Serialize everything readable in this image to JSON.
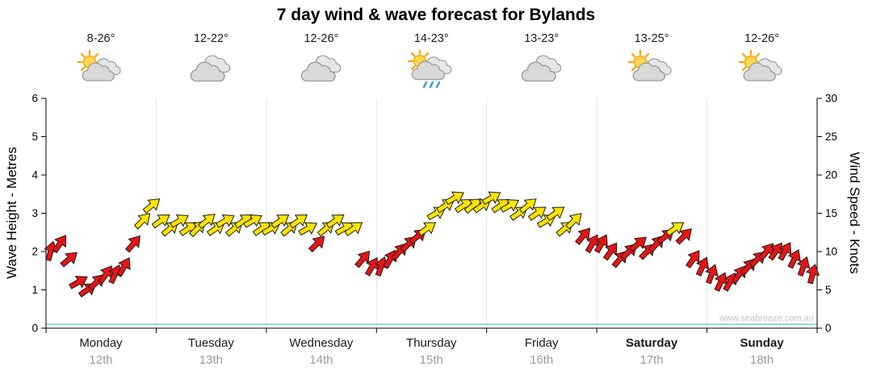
{
  "title": "7 day wind & wave forecast for Bylands",
  "watermark": "www.seabreeze.com.au",
  "days": [
    {
      "name": "Monday",
      "date": "12th",
      "temp": "8-26°",
      "icon": "sun-clouds",
      "bold": false
    },
    {
      "name": "Tuesday",
      "date": "13th",
      "temp": "12-22°",
      "icon": "clouds",
      "bold": false
    },
    {
      "name": "Wednesday",
      "date": "14th",
      "temp": "12-26°",
      "icon": "clouds",
      "bold": false
    },
    {
      "name": "Thursday",
      "date": "15th",
      "temp": "14-23°",
      "icon": "sun-clouds-rain",
      "bold": false
    },
    {
      "name": "Friday",
      "date": "16th",
      "temp": "13-23°",
      "icon": "clouds",
      "bold": false
    },
    {
      "name": "Saturday",
      "date": "17th",
      "temp": "13-25°",
      "icon": "sun-clouds",
      "bold": true
    },
    {
      "name": "Sunday",
      "date": "18th",
      "temp": "12-26°",
      "icon": "sun-clouds",
      "bold": true
    }
  ],
  "chart_data": {
    "type": "line",
    "title": "7 day wind & wave forecast for Bylands",
    "x_categories_days": [
      "Monday 12th",
      "Tuesday 13th",
      "Wednesday 14th",
      "Thursday 15th",
      "Friday 16th",
      "Saturday 17th",
      "Sunday 18th"
    ],
    "points_per_day": 12,
    "left_axis": {
      "label": "Wave Height - Metres",
      "range": [
        0,
        6
      ],
      "ticks": [
        0,
        1,
        2,
        3,
        4,
        5,
        6
      ]
    },
    "right_axis": {
      "label": "Wind Speed - Knots",
      "range": [
        0,
        30
      ],
      "ticks": [
        0,
        5,
        10,
        15,
        20,
        25,
        30
      ]
    },
    "grid": "vertical-day-separators",
    "series": [
      {
        "name": "Wind Speed",
        "unit": "knots",
        "axis": "right",
        "style": "direction-arrows",
        "color_below_threshold": "#e81414",
        "color_above_threshold": "#ffe400",
        "threshold_knots": 12.5,
        "values": [
          10,
          11,
          9,
          6,
          5,
          6,
          7,
          7,
          8,
          11,
          14,
          16,
          14,
          13,
          14,
          13,
          13,
          14,
          13,
          14,
          13,
          14,
          14,
          13,
          13,
          14,
          13,
          14,
          13,
          11,
          13,
          14,
          13,
          13,
          9,
          8,
          8,
          9,
          10,
          11,
          12,
          13,
          15,
          16,
          17,
          16,
          16,
          16,
          17,
          16,
          16,
          15,
          16,
          15,
          14,
          15,
          13,
          14,
          12,
          11,
          11,
          10,
          9,
          10,
          11,
          10,
          11,
          12,
          13,
          12,
          9,
          8,
          7,
          6,
          6,
          7,
          8,
          9,
          10,
          10,
          10,
          9,
          8,
          7
        ],
        "directions_deg": [
          75,
          55,
          40,
          30,
          35,
          45,
          55,
          65,
          60,
          50,
          45,
          40,
          35,
          40,
          30,
          35,
          45,
          40,
          35,
          30,
          40,
          35,
          30,
          35,
          30,
          35,
          40,
          35,
          30,
          45,
          40,
          35,
          30,
          35,
          50,
          60,
          70,
          60,
          50,
          45,
          40,
          35,
          30,
          35,
          30,
          35,
          40,
          35,
          30,
          35,
          30,
          35,
          40,
          35,
          30,
          35,
          40,
          45,
          50,
          60,
          60,
          55,
          50,
          45,
          40,
          45,
          50,
          40,
          35,
          45,
          55,
          65,
          70,
          65,
          60,
          55,
          50,
          45,
          50,
          55,
          60,
          65,
          70,
          75
        ]
      },
      {
        "name": "Wave Height",
        "unit": "metres",
        "axis": "left",
        "style": "line",
        "color": "#8ad8de",
        "values": [
          0.1,
          0.1,
          0.1,
          0.1,
          0.1,
          0.1,
          0.1,
          0.1,
          0.1,
          0.1,
          0.1,
          0.1,
          0.1,
          0.1,
          0.1,
          0.1,
          0.1,
          0.1,
          0.1,
          0.1,
          0.1,
          0.1,
          0.1,
          0.1,
          0.1,
          0.1,
          0.1,
          0.1
        ]
      }
    ]
  }
}
